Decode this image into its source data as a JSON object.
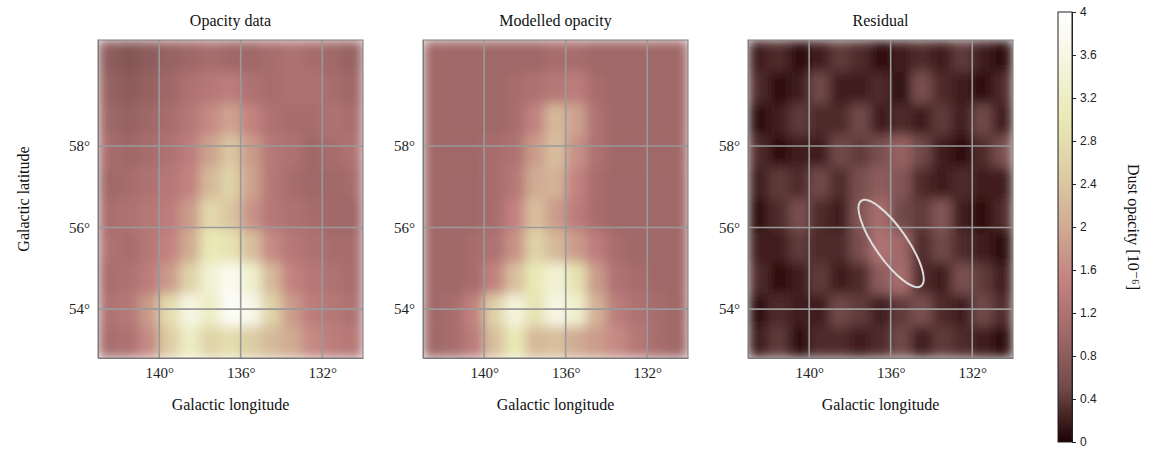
{
  "chart_data": {
    "type": "heatmap",
    "grid": true,
    "panels": [
      {
        "title": "Opacity data",
        "x_label": "Galactic longitude",
        "y_label": "Galactic latitude",
        "xlim": [
          143,
          130
        ],
        "ylim": [
          52.8,
          60.6
        ],
        "xticks": [
          {
            "value": 140,
            "label": "140°"
          },
          {
            "value": 136,
            "label": "136°"
          },
          {
            "value": 132,
            "label": "132°"
          }
        ],
        "yticks": [
          {
            "value": 54,
            "label": "54°"
          },
          {
            "value": 56,
            "label": "56°"
          },
          {
            "value": 58,
            "label": "58°"
          }
        ],
        "x": [
          142.5,
          141.5,
          140.5,
          139.5,
          138.5,
          137.5,
          136.5,
          135.5,
          134.5,
          133.5,
          132.5,
          131.5,
          130.5
        ],
        "y": [
          60.21,
          59.43,
          58.65,
          57.87,
          57.09,
          56.31,
          55.53,
          54.75,
          53.97,
          53.19
        ],
        "values": [
          [
            0.8,
            0.7,
            0.8,
            0.9,
            1.0,
            1.1,
            1.0,
            1.0,
            1.1,
            1.2,
            1.1,
            1.0,
            0.9
          ],
          [
            0.9,
            0.8,
            0.9,
            1.0,
            1.2,
            1.3,
            1.4,
            1.2,
            1.1,
            1.2,
            1.2,
            1.1,
            1.0
          ],
          [
            1.0,
            0.9,
            1.0,
            1.1,
            1.3,
            1.6,
            1.9,
            1.5,
            1.2,
            1.1,
            1.1,
            1.2,
            1.1
          ],
          [
            1.1,
            1.0,
            1.1,
            1.2,
            1.4,
            1.9,
            2.4,
            1.8,
            1.3,
            1.2,
            1.0,
            1.1,
            1.2
          ],
          [
            1.0,
            1.1,
            1.2,
            1.3,
            1.5,
            2.2,
            2.6,
            1.9,
            1.3,
            1.1,
            1.0,
            1.0,
            1.1
          ],
          [
            1.1,
            1.2,
            1.3,
            1.4,
            1.8,
            2.7,
            2.4,
            1.7,
            1.3,
            1.2,
            1.1,
            1.0,
            1.0
          ],
          [
            1.2,
            1.1,
            1.3,
            1.5,
            2.0,
            3.0,
            2.9,
            2.3,
            1.6,
            1.3,
            1.2,
            1.1,
            1.1
          ],
          [
            1.1,
            1.2,
            1.4,
            1.8,
            2.6,
            3.4,
            3.8,
            3.3,
            2.2,
            1.5,
            1.3,
            1.2,
            1.1
          ],
          [
            1.2,
            1.3,
            1.8,
            2.8,
            3.6,
            3.2,
            3.9,
            3.7,
            2.6,
            1.8,
            1.4,
            1.3,
            1.2
          ],
          [
            1.1,
            1.2,
            1.6,
            2.5,
            3.2,
            2.6,
            2.8,
            2.5,
            2.2,
            2.0,
            1.6,
            1.4,
            1.3
          ]
        ]
      },
      {
        "title": "Modelled opacity",
        "x_label": "Galactic longitude",
        "xlim": [
          143,
          130
        ],
        "ylim": [
          52.8,
          60.6
        ],
        "xticks": [
          {
            "value": 140,
            "label": "140°"
          },
          {
            "value": 136,
            "label": "136°"
          },
          {
            "value": 132,
            "label": "132°"
          }
        ],
        "yticks": [
          {
            "value": 54,
            "label": "54°"
          },
          {
            "value": 56,
            "label": "56°"
          },
          {
            "value": 58,
            "label": "58°"
          }
        ],
        "x": [
          142.5,
          141.5,
          140.5,
          139.5,
          138.5,
          137.5,
          136.5,
          135.5,
          134.5,
          133.5,
          132.5,
          131.5,
          130.5
        ],
        "y": [
          60.21,
          59.43,
          58.65,
          57.87,
          57.09,
          56.31,
          55.53,
          54.75,
          53.97,
          53.19
        ],
        "values": [
          [
            1.0,
            1.0,
            1.0,
            1.0,
            1.0,
            1.0,
            1.1,
            1.1,
            1.0,
            1.0,
            1.0,
            1.0,
            1.0
          ],
          [
            1.0,
            1.0,
            1.0,
            1.0,
            1.1,
            1.2,
            1.3,
            1.4,
            1.1,
            1.0,
            1.0,
            1.0,
            1.0
          ],
          [
            1.0,
            1.0,
            1.0,
            1.0,
            1.1,
            1.5,
            2.2,
            1.9,
            1.2,
            1.0,
            1.0,
            1.0,
            1.0
          ],
          [
            1.0,
            1.0,
            1.0,
            1.1,
            1.2,
            1.8,
            2.3,
            1.7,
            1.2,
            1.0,
            1.0,
            1.0,
            1.0
          ],
          [
            1.0,
            1.0,
            1.0,
            1.1,
            1.3,
            2.0,
            2.1,
            1.5,
            1.1,
            1.0,
            1.0,
            1.0,
            1.0
          ],
          [
            1.0,
            1.0,
            1.0,
            1.1,
            1.5,
            2.3,
            1.8,
            1.4,
            1.1,
            1.0,
            1.0,
            1.0,
            1.0
          ],
          [
            1.0,
            1.0,
            1.1,
            1.2,
            1.7,
            2.6,
            2.2,
            1.8,
            1.4,
            1.1,
            1.0,
            1.0,
            1.0
          ],
          [
            1.0,
            1.0,
            1.1,
            1.5,
            2.3,
            3.0,
            3.4,
            2.9,
            1.8,
            1.2,
            1.1,
            1.0,
            1.0
          ],
          [
            1.0,
            1.1,
            1.5,
            2.6,
            3.5,
            2.9,
            3.6,
            3.3,
            2.1,
            1.4,
            1.2,
            1.1,
            1.0
          ],
          [
            1.0,
            1.1,
            1.4,
            2.3,
            3.0,
            2.2,
            2.3,
            2.0,
            1.8,
            1.6,
            1.3,
            1.1,
            1.0
          ]
        ]
      },
      {
        "title": "Residual",
        "x_label": "Galactic longitude",
        "xlim": [
          143,
          130
        ],
        "ylim": [
          52.8,
          60.6
        ],
        "xticks": [
          {
            "value": 140,
            "label": "140°"
          },
          {
            "value": 136,
            "label": "136°"
          },
          {
            "value": 132,
            "label": "132°"
          }
        ],
        "yticks": [
          {
            "value": 54,
            "label": "54°"
          },
          {
            "value": 56,
            "label": "56°"
          },
          {
            "value": 58,
            "label": "58°"
          }
        ],
        "x": [
          142.5,
          141.5,
          140.5,
          139.5,
          138.5,
          137.5,
          136.5,
          135.5,
          134.5,
          133.5,
          132.5,
          131.5,
          130.5
        ],
        "y": [
          60.21,
          59.43,
          58.65,
          57.87,
          57.09,
          56.31,
          55.53,
          54.75,
          53.97,
          53.19
        ],
        "values": [
          [
            0.2,
            0.3,
            0.1,
            0.2,
            0.4,
            0.3,
            0.1,
            0.2,
            0.3,
            0.2,
            0.4,
            0.2,
            0.1
          ],
          [
            0.3,
            0.1,
            0.2,
            0.5,
            0.2,
            0.2,
            0.3,
            0.1,
            0.6,
            0.3,
            0.2,
            0.1,
            0.3
          ],
          [
            0.1,
            0.2,
            0.4,
            0.3,
            0.3,
            0.5,
            0.2,
            0.3,
            0.2,
            0.4,
            0.2,
            0.5,
            0.2
          ],
          [
            0.3,
            0.1,
            0.2,
            0.2,
            0.5,
            0.4,
            0.6,
            0.9,
            0.5,
            0.2,
            0.1,
            0.3,
            0.6
          ],
          [
            0.2,
            0.4,
            0.3,
            0.5,
            0.3,
            0.6,
            0.8,
            0.7,
            0.3,
            0.2,
            0.3,
            0.2,
            0.2
          ],
          [
            0.1,
            0.3,
            0.6,
            0.3,
            0.2,
            0.7,
            1.1,
            0.5,
            0.4,
            0.7,
            0.2,
            0.1,
            0.3
          ],
          [
            0.2,
            0.2,
            0.4,
            0.3,
            0.3,
            0.6,
            1.2,
            1.0,
            0.3,
            0.5,
            0.3,
            0.2,
            0.1
          ],
          [
            0.3,
            0.1,
            0.2,
            0.4,
            0.2,
            0.3,
            0.8,
            1.1,
            0.3,
            0.2,
            0.6,
            0.4,
            0.2
          ],
          [
            0.1,
            0.3,
            0.2,
            0.2,
            0.5,
            0.4,
            0.2,
            0.4,
            0.6,
            0.3,
            0.2,
            0.5,
            0.3
          ],
          [
            0.2,
            0.4,
            0.1,
            0.3,
            0.3,
            0.2,
            0.3,
            0.5,
            0.2,
            0.4,
            0.3,
            0.2,
            0.1
          ]
        ]
      }
    ],
    "colorbar": {
      "label": "Dust opacity [10⁻⁶]",
      "lim": [
        0,
        4
      ],
      "ticks": [
        0,
        0.4,
        0.8,
        1.2,
        1.6,
        2,
        2.4,
        2.8,
        3.2,
        3.6,
        4
      ]
    }
  }
}
